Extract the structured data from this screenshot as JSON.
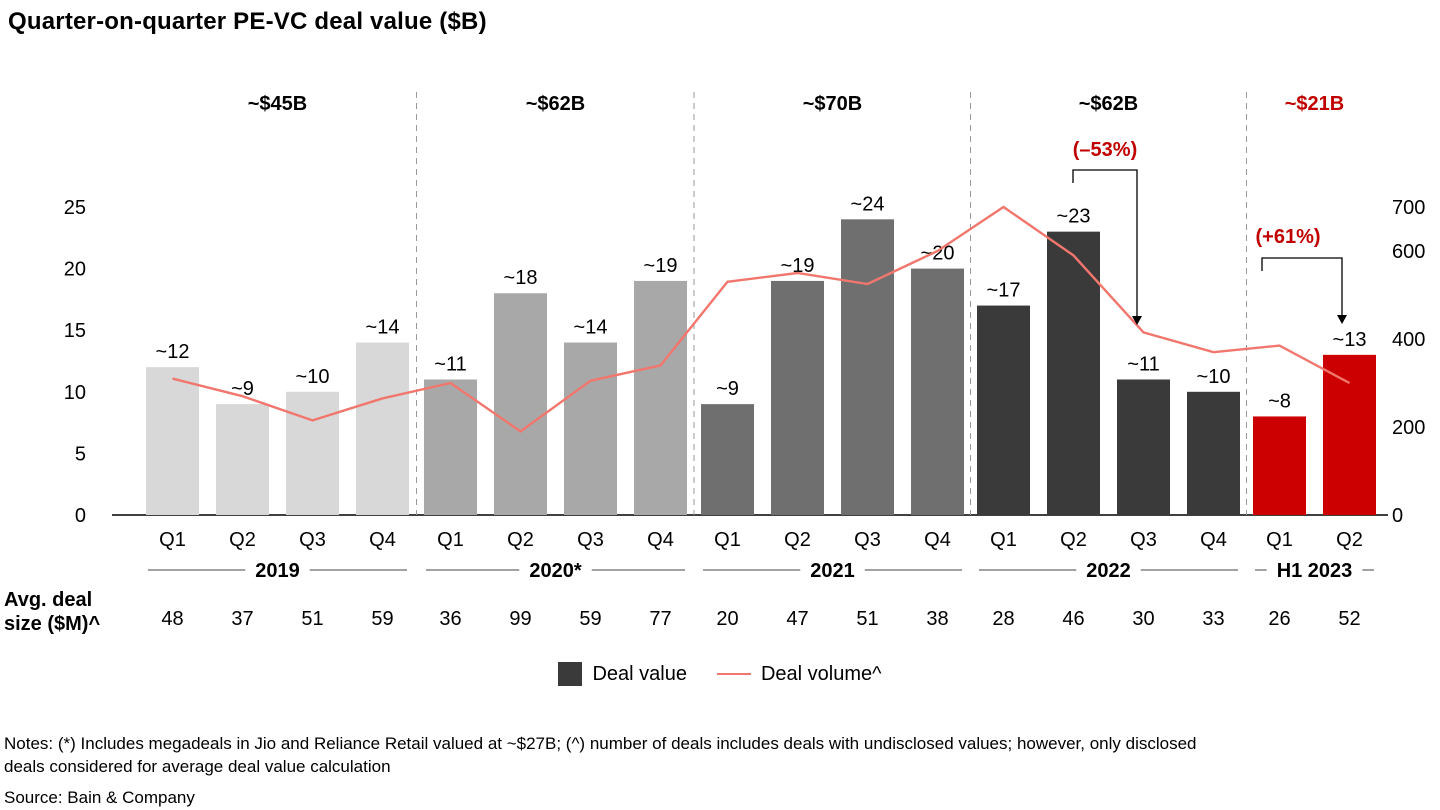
{
  "title": "Quarter-on-quarter PE-VC deal value ($B)",
  "row_label": "Avg. deal\nsize ($M)^",
  "legend": {
    "deal_value": "Deal value",
    "deal_volume": "Deal volume^"
  },
  "annotations": {
    "decline": "(–53%)",
    "growth": "(+61%)"
  },
  "notes": "Notes: (*) Includes megadeals in Jio and Reliance Retail valued at ~$27B; (^) number of deals includes deals with undisclosed values; however, only disclosed\ndeals considered for average deal value calculation",
  "source": "Source: Bain & Company",
  "colors": {
    "red_text": "#c00000",
    "volume_line": "#f1776e",
    "bar_2019": "#d8d8d8",
    "bar_2020": "#a8a8a8",
    "bar_2021": "#6f6f6f",
    "bar_2022": "#3a3a3a",
    "bar_2023": "#cc0000",
    "separator": "#9a9a9a",
    "axis": "#000000"
  },
  "chart_data": {
    "type": "bar+line",
    "title": "Quarter-on-quarter PE-VC deal value ($B)",
    "left_axis_ticks": [
      0,
      5,
      10,
      15,
      20,
      25
    ],
    "right_axis_ticks": [
      0,
      200,
      400,
      600,
      700
    ],
    "left_max": 25,
    "right_max": 700,
    "series_names": [
      "Deal value",
      "Deal volume^"
    ],
    "groups": [
      {
        "year": "2019",
        "total": "~$45B",
        "total_color": "#000000",
        "bar_color": "#d8d8d8",
        "quarters": [
          "Q1",
          "Q2",
          "Q3",
          "Q4"
        ],
        "deal_value_labels": [
          "~12",
          "~9",
          "~10",
          "~14"
        ],
        "deal_values": [
          12,
          9,
          10,
          14
        ],
        "avg_deal_size": [
          48,
          37,
          51,
          59
        ],
        "deal_volume": [
          310,
          270,
          215,
          265
        ]
      },
      {
        "year": "2020*",
        "total": "~$62B",
        "total_color": "#000000",
        "bar_color": "#a8a8a8",
        "quarters": [
          "Q1",
          "Q2",
          "Q3",
          "Q4"
        ],
        "deal_value_labels": [
          "~11",
          "~18",
          "~14",
          "~19"
        ],
        "deal_values": [
          11,
          18,
          14,
          19
        ],
        "avg_deal_size": [
          36,
          99,
          59,
          77
        ],
        "deal_volume": [
          300,
          190,
          305,
          340
        ]
      },
      {
        "year": "2021",
        "total": "~$70B",
        "total_color": "#000000",
        "bar_color": "#6f6f6f",
        "quarters": [
          "Q1",
          "Q2",
          "Q3",
          "Q4"
        ],
        "deal_value_labels": [
          "~9",
          "~19",
          "~24",
          "~20"
        ],
        "deal_values": [
          9,
          19,
          24,
          20
        ],
        "avg_deal_size": [
          20,
          47,
          51,
          38
        ],
        "deal_volume": [
          530,
          550,
          525,
          600
        ]
      },
      {
        "year": "2022",
        "total": "~$62B",
        "total_color": "#000000",
        "bar_color": "#3a3a3a",
        "quarters": [
          "Q1",
          "Q2",
          "Q3",
          "Q4"
        ],
        "deal_value_labels": [
          "~17",
          "~23",
          "~11",
          "~10"
        ],
        "deal_values": [
          17,
          23,
          11,
          10
        ],
        "avg_deal_size": [
          28,
          46,
          30,
          33
        ],
        "deal_volume": [
          700,
          590,
          415,
          370
        ]
      },
      {
        "year": "H1 2023",
        "total": "~$21B",
        "total_color": "#c00000",
        "bar_color": "#cc0000",
        "quarters": [
          "Q1",
          "Q2"
        ],
        "deal_value_labels": [
          "~8",
          "~13"
        ],
        "deal_values": [
          8,
          13
        ],
        "avg_deal_size": [
          26,
          52
        ],
        "deal_volume": [
          385,
          300
        ]
      }
    ]
  }
}
